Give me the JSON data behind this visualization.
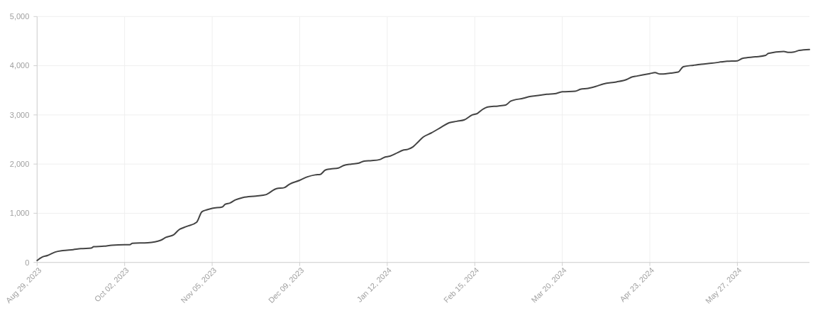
{
  "chart_data": {
    "type": "line",
    "x": [
      "2023-08-29",
      "2023-08-31",
      "2023-09-02",
      "2023-09-05",
      "2023-09-08",
      "2023-09-12",
      "2023-09-15",
      "2023-09-19",
      "2023-09-20",
      "2023-09-24",
      "2023-09-27",
      "2023-10-02",
      "2023-10-04",
      "2023-10-05",
      "2023-10-11",
      "2023-10-16",
      "2023-10-18",
      "2023-10-21",
      "2023-10-23",
      "2023-10-26",
      "2023-10-30",
      "2023-11-01",
      "2023-11-03",
      "2023-11-05",
      "2023-11-09",
      "2023-11-10",
      "2023-11-12",
      "2023-11-14",
      "2023-11-17",
      "2023-11-22",
      "2023-11-26",
      "2023-11-27",
      "2023-11-30",
      "2023-12-03",
      "2023-12-05",
      "2023-12-09",
      "2023-12-12",
      "2023-12-15",
      "2023-12-17",
      "2023-12-19",
      "2023-12-21",
      "2023-12-24",
      "2023-12-26",
      "2023-12-29",
      "2024-01-01",
      "2024-01-03",
      "2024-01-06",
      "2024-01-09",
      "2024-01-11",
      "2024-01-13",
      "2024-01-16",
      "2024-01-18",
      "2024-01-20",
      "2024-01-22",
      "2024-01-24",
      "2024-01-26",
      "2024-01-29",
      "2024-02-02",
      "2024-02-05",
      "2024-02-08",
      "2024-02-11",
      "2024-02-14",
      "2024-02-16",
      "2024-02-18",
      "2024-02-20",
      "2024-02-24",
      "2024-02-27",
      "2024-02-29",
      "2024-03-05",
      "2024-03-07",
      "2024-03-10",
      "2024-03-14",
      "2024-03-17",
      "2024-03-20",
      "2024-03-25",
      "2024-03-27",
      "2024-03-30",
      "2024-04-02",
      "2024-04-05",
      "2024-04-10",
      "2024-04-14",
      "2024-04-16",
      "2024-04-18",
      "2024-04-23",
      "2024-04-25",
      "2024-04-27",
      "2024-05-01",
      "2024-05-04",
      "2024-05-06",
      "2024-05-10",
      "2024-05-13",
      "2024-05-17",
      "2024-05-23",
      "2024-05-27",
      "2024-05-29",
      "2024-06-03",
      "2024-06-07",
      "2024-06-08",
      "2024-06-14",
      "2024-06-16",
      "2024-06-18",
      "2024-06-20",
      "2024-06-24"
    ],
    "series": [
      {
        "color": "#444444",
        "values": [
          40,
          110,
          140,
          210,
          240,
          260,
          280,
          290,
          320,
          330,
          350,
          360,
          360,
          390,
          400,
          450,
          510,
          560,
          660,
          730,
          820,
          1030,
          1070,
          1100,
          1130,
          1180,
          1210,
          1270,
          1320,
          1350,
          1380,
          1410,
          1500,
          1520,
          1590,
          1670,
          1740,
          1780,
          1790,
          1880,
          1900,
          1920,
          1970,
          2000,
          2020,
          2060,
          2070,
          2090,
          2140,
          2160,
          2230,
          2280,
          2300,
          2350,
          2450,
          2550,
          2630,
          2750,
          2840,
          2870,
          2900,
          3000,
          3030,
          3110,
          3160,
          3180,
          3200,
          3280,
          3340,
          3370,
          3390,
          3420,
          3430,
          3470,
          3480,
          3520,
          3540,
          3580,
          3630,
          3670,
          3720,
          3770,
          3790,
          3840,
          3860,
          3830,
          3850,
          3870,
          3980,
          4010,
          4030,
          4050,
          4090,
          4100,
          4150,
          4180,
          4210,
          4250,
          4290,
          4270,
          4280,
          4310,
          4330
        ]
      }
    ],
    "xlim": [
      "2023-08-29",
      "2024-06-24"
    ],
    "xticks": [
      {
        "value": "2023-08-29",
        "label": "Aug 29, 2023"
      },
      {
        "value": "2023-10-02",
        "label": "Oct 02, 2023"
      },
      {
        "value": "2023-11-05",
        "label": "Nov 05, 2023"
      },
      {
        "value": "2023-12-09",
        "label": "Dec 09, 2023"
      },
      {
        "value": "2024-01-12",
        "label": "Jan 12, 2024"
      },
      {
        "value": "2024-02-15",
        "label": "Feb 15, 2024"
      },
      {
        "value": "2024-03-20",
        "label": "Mar 20, 2024"
      },
      {
        "value": "2024-04-23",
        "label": "Apr 23, 2024"
      },
      {
        "value": "2024-05-27",
        "label": "May 27, 2024"
      }
    ],
    "ylim": [
      0,
      5000
    ],
    "yticks": [
      0,
      {
        "value": 1000,
        "label": "1,000"
      },
      {
        "value": 2000,
        "label": "2,000"
      },
      {
        "value": 3000,
        "label": "3,000"
      },
      {
        "value": 4000,
        "label": "4,000"
      },
      {
        "value": 5000,
        "label": "5,000"
      }
    ],
    "grid": true
  }
}
